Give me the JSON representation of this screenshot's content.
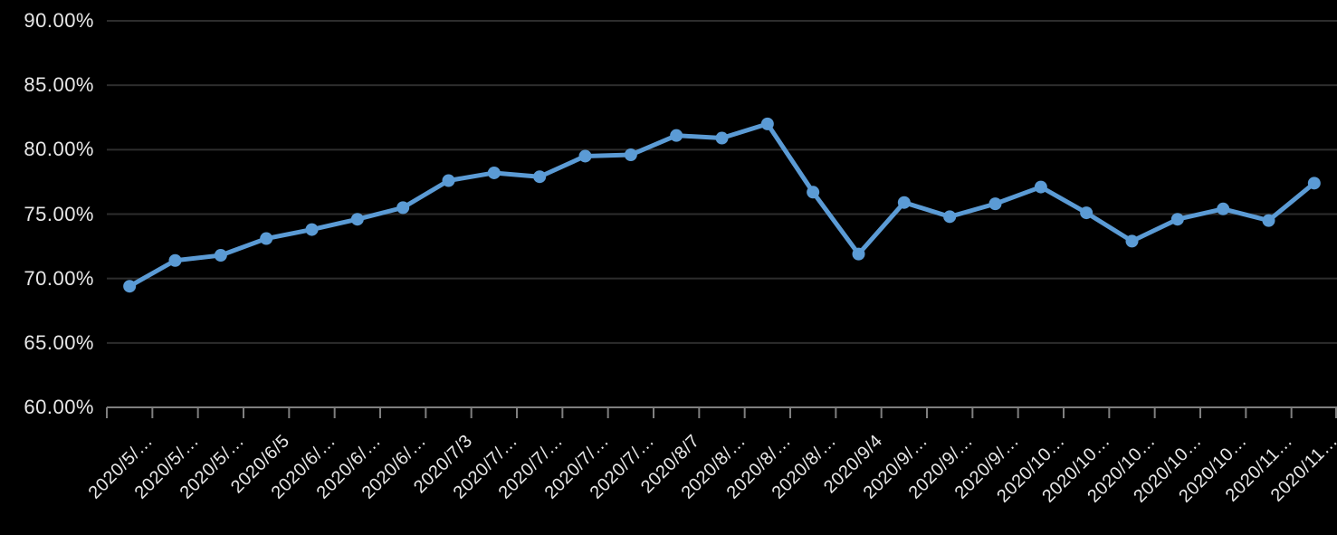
{
  "chart_data": {
    "type": "line",
    "title": "",
    "xlabel": "",
    "ylabel": "",
    "categories": [
      "2020/5/…",
      "2020/5/…",
      "2020/5/…",
      "2020/6/5",
      "2020/6/…",
      "2020/6/…",
      "2020/6/…",
      "2020/7/3",
      "2020/7/…",
      "2020/7/…",
      "2020/7/…",
      "2020/7/…",
      "2020/8/7",
      "2020/8/…",
      "2020/8/…",
      "2020/8/…",
      "2020/9/4",
      "2020/9/…",
      "2020/9/…",
      "2020/9/…",
      "2020/10…",
      "2020/10…",
      "2020/10…",
      "2020/10…",
      "2020/10…",
      "2020/11…",
      "2020/11…"
    ],
    "values": [
      69.4,
      71.4,
      71.8,
      73.1,
      73.8,
      74.6,
      75.5,
      77.6,
      78.2,
      77.9,
      79.5,
      79.6,
      81.1,
      80.9,
      82.0,
      76.7,
      71.9,
      75.9,
      74.8,
      75.8,
      77.1,
      75.1,
      72.9,
      74.6,
      75.4,
      74.5,
      77.4
    ],
    "ylim": [
      60,
      90
    ],
    "y_tick_step": 5,
    "y_tick_labels": [
      "90.00%",
      "85.00%",
      "80.00%",
      "75.00%",
      "70.00%",
      "65.00%",
      "60.00%"
    ],
    "grid": true,
    "legend": false,
    "marker": "circle",
    "colors": {
      "background": "#000000",
      "series_line": "#5b9bd5",
      "marker_fill": "#5b9bd5",
      "gridline": "#2d2d2d",
      "axis_line": "#7f7f7f",
      "tick_mark": "#7f7f7f",
      "label_text": "#e8e8e8"
    }
  }
}
